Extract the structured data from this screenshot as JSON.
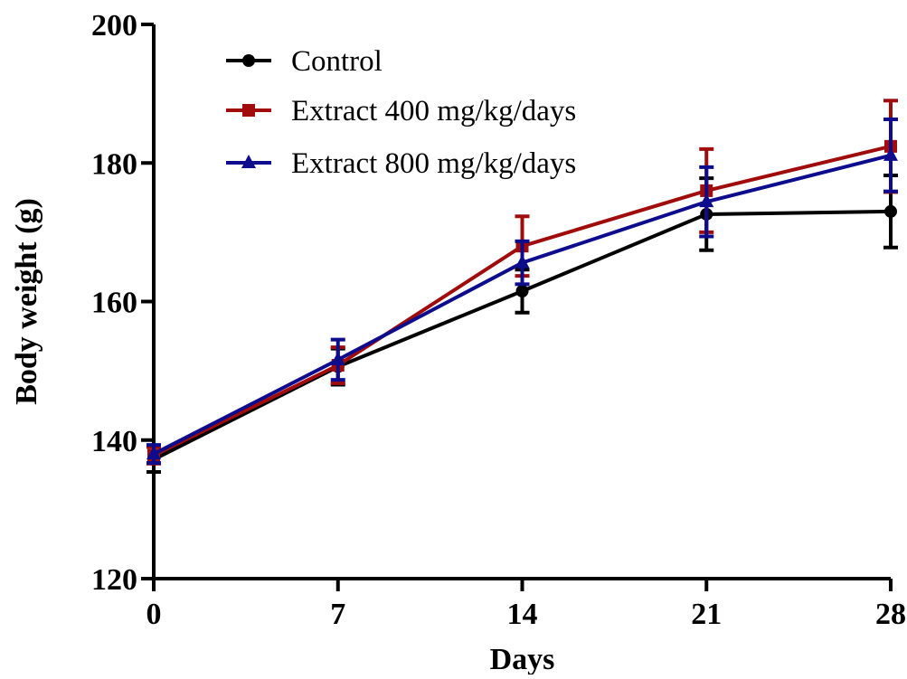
{
  "chart_data": {
    "type": "line",
    "xlabel": "Days",
    "ylabel": "Body weight (g)",
    "x": [
      0,
      7,
      14,
      21,
      28
    ],
    "x_tick_labels": [
      "0",
      "7",
      "14",
      "21",
      "28"
    ],
    "ylim": [
      120,
      200
    ],
    "y_ticks": [
      120,
      140,
      160,
      180,
      200
    ],
    "y_tick_labels": [
      "120",
      "140",
      "160",
      "180",
      "200"
    ],
    "grid": false,
    "legend_position": "top-left",
    "series": [
      {
        "name": "Control",
        "color": "#000000",
        "marker": "circle",
        "values": [
          137.2,
          150.6,
          161.5,
          172.6,
          173.0
        ],
        "error": [
          1.8,
          2.6,
          3.1,
          5.2,
          5.2
        ]
      },
      {
        "name": "Extract 400 mg/kg/days",
        "color": "#a00c0c",
        "marker": "square",
        "values": [
          137.8,
          150.8,
          168.0,
          176.0,
          182.4
        ],
        "error": [
          1.2,
          2.6,
          4.3,
          6.0,
          6.6
        ]
      },
      {
        "name": "Extract 800 mg/kg/days",
        "color": "#0c0c8c",
        "marker": "triangle",
        "values": [
          138.0,
          151.6,
          165.6,
          174.4,
          181.1
        ],
        "error": [
          1.3,
          2.9,
          3.1,
          5.0,
          5.2
        ]
      }
    ]
  }
}
